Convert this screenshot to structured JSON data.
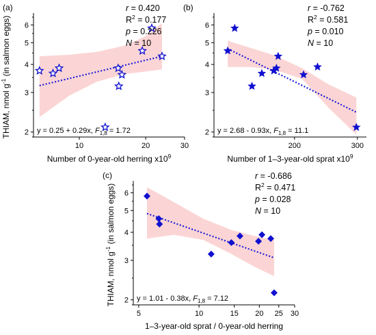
{
  "chart_data": [
    {
      "type": "scatter",
      "panel_label": "(a)",
      "xlabel": "Number of 0-year-old herring x10",
      "xlabel_sup": "9",
      "ylabel": "THIAM, nmol g",
      "ylabel_sup": "-1",
      "ylabel_tail": " (in salmon eggs)",
      "x_scale": "log",
      "y_scale": "log",
      "xlim": [
        6.2,
        30
      ],
      "ylim": [
        1.9,
        6.5
      ],
      "x_ticks": [
        10,
        20,
        30
      ],
      "y_ticks": [
        2,
        3,
        4,
        5,
        6
      ],
      "marker": "star-open",
      "color": "#1010d0",
      "points": [
        {
          "x": 6.6,
          "y": 3.75
        },
        {
          "x": 7.6,
          "y": 3.65
        },
        {
          "x": 8.1,
          "y": 3.85
        },
        {
          "x": 13.1,
          "y": 2.1
        },
        {
          "x": 15.0,
          "y": 3.85
        },
        {
          "x": 15.1,
          "y": 3.2
        },
        {
          "x": 15.6,
          "y": 3.6
        },
        {
          "x": 19.3,
          "y": 4.6
        },
        {
          "x": 21.3,
          "y": 5.8
        },
        {
          "x": 23.7,
          "y": 4.35
        }
      ],
      "fit": {
        "x": [
          6.6,
          23.7
        ],
        "y": [
          3.22,
          4.35
        ]
      },
      "band_upper": [
        4.35,
        4.42,
        4.55,
        4.85,
        5.35,
        6.1
      ],
      "band_lower": [
        2.33,
        2.9,
        3.35,
        3.62,
        3.72,
        3.8
      ],
      "band_x": [
        6.6,
        9.0,
        12.0,
        16.0,
        20.0,
        23.7
      ],
      "stats": {
        "r": "0.420",
        "r2": "0.177",
        "p": "0.226",
        "N": "10"
      },
      "equation": "y = 0.25 + 0.29x, ",
      "f_stat": "1.72"
    },
    {
      "type": "scatter",
      "panel_label": "(b)",
      "xlabel": "Number of 1–3-year-old sprat x10",
      "xlabel_sup": "9",
      "x_scale": "log",
      "y_scale": "log",
      "xlim": [
        119,
        318
      ],
      "ylim": [
        1.9,
        6.5
      ],
      "x_ticks": [
        200,
        300
      ],
      "y_ticks": [
        2,
        3,
        4,
        5,
        6
      ],
      "marker": "star-filled",
      "color": "#1010d0",
      "points": [
        {
          "x": 130,
          "y": 4.6
        },
        {
          "x": 136,
          "y": 5.8
        },
        {
          "x": 152,
          "y": 3.2
        },
        {
          "x": 162,
          "y": 3.65
        },
        {
          "x": 175,
          "y": 3.75
        },
        {
          "x": 178,
          "y": 3.85
        },
        {
          "x": 180,
          "y": 4.35
        },
        {
          "x": 212,
          "y": 3.6
        },
        {
          "x": 232,
          "y": 3.9
        },
        {
          "x": 298,
          "y": 2.1
        }
      ],
      "fit": {
        "x": [
          130,
          298
        ],
        "y": [
          4.7,
          2.45
        ]
      },
      "band_upper": [
        5.1,
        4.75,
        4.4,
        3.85,
        3.25,
        2.85
      ],
      "band_lower": [
        3.9,
        3.9,
        3.8,
        3.45,
        2.55,
        1.95
      ],
      "band_x": [
        130,
        150,
        175,
        210,
        250,
        298
      ],
      "stats": {
        "r": "-0.762",
        "r2": "0.581",
        "p": "0.010",
        "N": "10"
      },
      "equation": "y = 2.68 - 0.93x, ",
      "f_stat": "11.1"
    },
    {
      "type": "scatter",
      "panel_label": "(c)",
      "xlabel": "1–3-year-old sprat / 0-year-old herring",
      "ylabel": "THIAM, nmol g",
      "ylabel_sup": "-1",
      "ylabel_tail": " (in salmon eggs)",
      "x_scale": "log",
      "y_scale": "log",
      "xlim": [
        4.7,
        30
      ],
      "ylim": [
        1.9,
        6.5
      ],
      "x_ticks": [
        5,
        10,
        15,
        20,
        25,
        30
      ],
      "y_ticks": [
        2,
        3,
        4,
        5,
        6
      ],
      "marker": "diamond-filled",
      "color": "#1010d0",
      "points": [
        {
          "x": 5.5,
          "y": 5.8
        },
        {
          "x": 6.3,
          "y": 4.6
        },
        {
          "x": 6.35,
          "y": 4.35
        },
        {
          "x": 11.5,
          "y": 3.2
        },
        {
          "x": 14.5,
          "y": 3.6
        },
        {
          "x": 16.0,
          "y": 3.85
        },
        {
          "x": 19.8,
          "y": 3.65
        },
        {
          "x": 20.6,
          "y": 3.9
        },
        {
          "x": 22.8,
          "y": 3.75
        },
        {
          "x": 23.7,
          "y": 2.15
        }
      ],
      "fit": {
        "x": [
          5.5,
          23.7
        ],
        "y": [
          4.85,
          3.08
        ]
      },
      "band_upper": [
        6.35,
        5.45,
        4.6,
        4.1,
        3.85,
        3.7
      ],
      "band_lower": [
        3.75,
        3.9,
        3.7,
        3.2,
        2.8,
        2.55
      ],
      "band_x": [
        5.5,
        7.5,
        10.5,
        14.5,
        19.0,
        23.7
      ],
      "stats": {
        "r": "-0.686",
        "r2": "0.471",
        "p": "0.028",
        "N": "10"
      },
      "equation": "y = 1.01 - 0.38x, ",
      "f_stat": "7.12"
    }
  ],
  "colors": {
    "marker": "#1010d0",
    "band": "#fbd5d5",
    "fit": "#1a1ad8"
  }
}
